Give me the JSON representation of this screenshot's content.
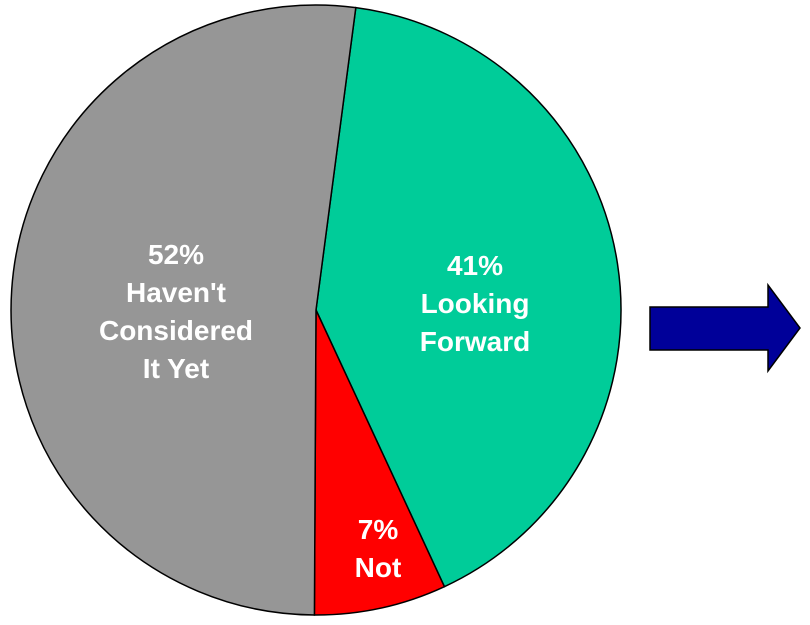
{
  "chart_data": {
    "type": "pie",
    "title": "",
    "slices": [
      {
        "key": "looking-forward",
        "value": 41,
        "pct_label": "41%",
        "label_lines": [
          "Looking",
          "Forward"
        ],
        "color": "#00CC99"
      },
      {
        "key": "not",
        "value": 7,
        "pct_label": "7%",
        "label_lines": [
          "Not"
        ],
        "color": "#FF0000"
      },
      {
        "key": "havent-considered",
        "value": 52,
        "pct_label": "52%",
        "label_lines": [
          "Haven't",
          "Considered",
          "It Yet"
        ],
        "color": "#969696"
      }
    ],
    "label_color": "#FFFFFF",
    "outline_color": "#000000"
  },
  "arrow": {
    "icon": "right-arrow-icon",
    "fill": "#000099"
  }
}
